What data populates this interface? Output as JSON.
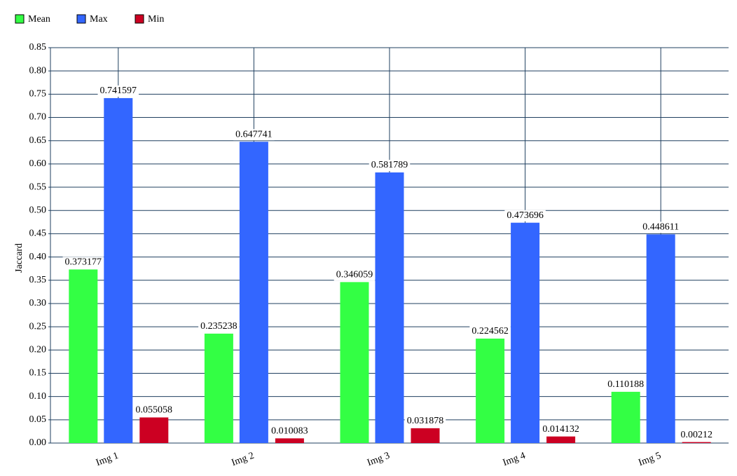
{
  "chart_data": {
    "type": "bar",
    "categories": [
      "Img 1",
      "Img 2",
      "Img 3",
      "Img 4",
      "Img 5"
    ],
    "y_label": "Jaccard",
    "series": [
      {
        "name": "Mean",
        "color": "#33ff44",
        "values": [
          0.373177,
          0.235238,
          0.346059,
          0.224562,
          0.110188
        ]
      },
      {
        "name": "Max",
        "color": "#3366ff",
        "values": [
          0.741597,
          0.647741,
          0.581789,
          0.473696,
          0.448611
        ]
      },
      {
        "name": "Min",
        "color": "#cc0022",
        "values": [
          0.055058,
          0.010083,
          0.031878,
          0.014132,
          0.00212
        ]
      }
    ],
    "ylim": [
      0,
      0.85
    ],
    "yticks": [
      {
        "value": 0,
        "label": "0.00"
      },
      {
        "value": 0.05,
        "label": "0.05"
      },
      {
        "value": 0.1,
        "label": "0.10"
      },
      {
        "value": 0.15,
        "label": "0.15"
      },
      {
        "value": 0.2,
        "label": "0.20"
      },
      {
        "value": 0.25,
        "label": "0.25"
      },
      {
        "value": 0.3,
        "label": "0.30"
      },
      {
        "value": 0.35,
        "label": "0.35"
      },
      {
        "value": 0.4,
        "label": "0.40"
      },
      {
        "value": 0.45,
        "label": "0.45"
      },
      {
        "value": 0.5,
        "label": "0.50"
      },
      {
        "value": 0.55,
        "label": "0.55"
      },
      {
        "value": 0.6,
        "label": "0.60"
      },
      {
        "value": 0.65,
        "label": "0.65"
      },
      {
        "value": 0.7,
        "label": "0.70"
      },
      {
        "value": 0.75,
        "label": "0.75"
      },
      {
        "value": 0.8,
        "label": "0.80"
      },
      {
        "value": 0.85,
        "label": "0.85"
      }
    ],
    "grid": true,
    "legend": "top-left"
  }
}
